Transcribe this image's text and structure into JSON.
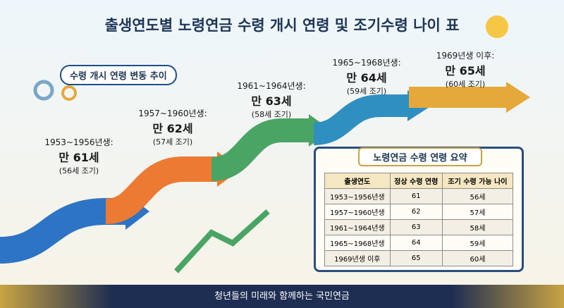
{
  "header": {
    "title": "출생연도별 노령연금 수령 개시 연령 및 조기수령 나이 표"
  },
  "trend_label": "수령 개시 연령 변동 추이",
  "steps": [
    {
      "cohort": "1953~1956년생:",
      "age": "만 61세",
      "early": "(56세 조기)"
    },
    {
      "cohort": "1957~1960년생:",
      "age": "만 62세",
      "early": "(57세 조기)"
    },
    {
      "cohort": "1961~1964년생:",
      "age": "만 63세",
      "early": "(58세 조기)"
    },
    {
      "cohort": "1965~1968년생:",
      "age": "만 64세",
      "early": "(59세 조기)"
    },
    {
      "cohort": "1969년생 이후:",
      "age": "만 65세",
      "early": "(60세 조기)"
    }
  ],
  "table": {
    "title": "노령연금 수령 연령 요약",
    "headers": [
      "출생연도",
      "정상 수령 연령",
      "조기 수령 가능 나이"
    ],
    "rows": [
      [
        "1953~1956년생",
        61,
        "56세"
      ],
      [
        "1957~1960년생",
        62,
        "57세"
      ],
      [
        "1961~1964년생",
        63,
        "58세"
      ],
      [
        "1965~1968년생",
        64,
        "59세"
      ],
      [
        "1969년생 이후",
        65,
        "60세"
      ]
    ]
  },
  "footer": "청년들의 미래와 함께하는 국민연금"
}
